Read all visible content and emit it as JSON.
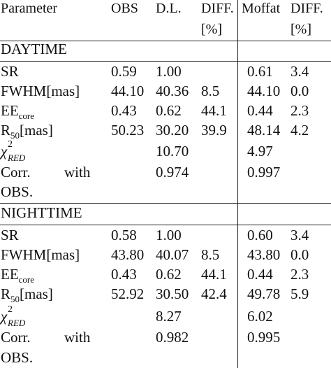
{
  "header": {
    "param": "Parameter",
    "obs": "OBS",
    "dl": "D.L.",
    "diff": "DIFF.",
    "diff_unit": "[%]",
    "moffat": "Moffat",
    "diff2": "DIFF.",
    "diff2_unit": "[%]"
  },
  "sections": [
    {
      "title": "DAYTIME",
      "rows": [
        {
          "param": "SR",
          "obs": "0.59",
          "dl": "1.00",
          "diff": "",
          "moffat": "0.61",
          "diff2": "3.4"
        },
        {
          "param": "FWHM[mas]",
          "obs": "44.10",
          "dl": "40.36",
          "diff": "8.5",
          "moffat": "44.10",
          "diff2": "0.0"
        },
        {
          "param_main": "EE",
          "param_sub": "core",
          "obs": "0.43",
          "dl": "0.62",
          "diff": "44.1",
          "moffat": "0.44",
          "diff2": "2.3"
        },
        {
          "param_main": "R",
          "param_sub": "50",
          "param_tail": "[mas]",
          "obs": "50.23",
          "dl": "30.20",
          "diff": "39.9",
          "moffat": "48.14",
          "diff2": "4.2"
        },
        {
          "chi": "χ",
          "chi_sup": "2",
          "chi_sub": "RED",
          "obs": "",
          "dl": "10.70",
          "diff": "",
          "moffat": "4.97",
          "diff2": ""
        },
        {
          "corr_a": "Corr.",
          "corr_b": "with",
          "corr_c": "OBS.",
          "dl": "0.974",
          "moffat": "0.997"
        }
      ]
    },
    {
      "title": "NIGHTTIME",
      "rows": [
        {
          "param": "SR",
          "obs": "0.58",
          "dl": "1.00",
          "diff": "",
          "moffat": "0.60",
          "diff2": "3.4"
        },
        {
          "param": "FWHM[mas]",
          "obs": "43.80",
          "dl": "40.07",
          "diff": "8.5",
          "moffat": "43.80",
          "diff2": "0.0"
        },
        {
          "param_main": "EE",
          "param_sub": "core",
          "obs": "0.43",
          "dl": "0.62",
          "diff": "44.1",
          "moffat": "0.44",
          "diff2": "2.3"
        },
        {
          "param_main": "R",
          "param_sub": "50",
          "param_tail": "[mas]",
          "obs": "52.92",
          "dl": "30.50",
          "diff": "42.4",
          "moffat": "49.78",
          "diff2": "5.9"
        },
        {
          "chi": "χ",
          "chi_sup": "2",
          "chi_sub": "RED",
          "obs": "",
          "dl": "8.27",
          "diff": "",
          "moffat": "6.02",
          "diff2": ""
        },
        {
          "corr_a": "Corr.",
          "corr_b": "with",
          "corr_c": "OBS.",
          "dl": "0.982",
          "moffat": "0.995"
        }
      ]
    }
  ]
}
